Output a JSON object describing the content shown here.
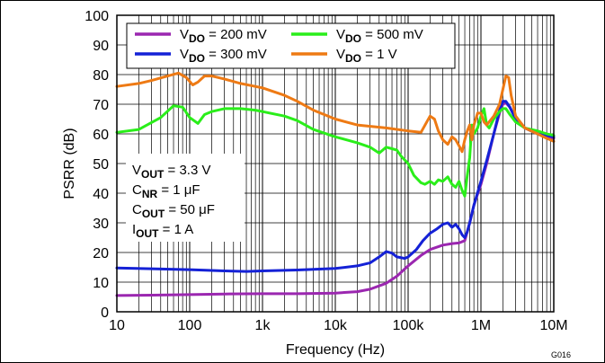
{
  "chart_data": {
    "type": "line",
    "ylabel": "PSRR (dB)",
    "xlabel": "Frequency (Hz)",
    "figure_id": "G016",
    "xscale": "log",
    "xlim": [
      10,
      10000000
    ],
    "ylim": [
      0,
      100
    ],
    "x_ticks": [
      10,
      100,
      1000,
      10000,
      100000,
      1000000,
      10000000
    ],
    "x_tick_labels": [
      "10",
      "100",
      "1k",
      "10k",
      "100k",
      "1M",
      "10M"
    ],
    "y_ticks": [
      0,
      10,
      20,
      30,
      40,
      50,
      60,
      70,
      80,
      90,
      100
    ],
    "y_tick_labels": [
      "0",
      "10",
      "20",
      "30",
      "40",
      "50",
      "60",
      "70",
      "80",
      "90",
      "100"
    ],
    "grid": true,
    "legend_position": "top",
    "series": [
      {
        "name_main": "V",
        "name_sub": "DO",
        "name_value": " = 200 mV",
        "color": "#9b27b0",
        "points": [
          [
            10,
            5.5
          ],
          [
            30,
            5.6
          ],
          [
            100,
            5.8
          ],
          [
            300,
            6
          ],
          [
            1000,
            6.1
          ],
          [
            3000,
            6.1
          ],
          [
            10000,
            6.3
          ],
          [
            20000,
            6.8
          ],
          [
            30000,
            7.6
          ],
          [
            50000,
            9.6
          ],
          [
            70000,
            12
          ],
          [
            100000,
            15.5
          ],
          [
            150000,
            19
          ],
          [
            200000,
            21
          ],
          [
            300000,
            22.5
          ],
          [
            400000,
            23
          ],
          [
            500000,
            23.2
          ],
          [
            600000,
            24
          ],
          [
            700000,
            30
          ],
          [
            800000,
            36
          ],
          [
            1000000,
            43
          ],
          [
            1200000,
            50
          ],
          [
            1500000,
            60
          ],
          [
            1800000,
            67
          ],
          [
            2000000,
            70
          ],
          [
            2200000,
            70.5
          ],
          [
            2500000,
            69
          ],
          [
            3000000,
            65
          ],
          [
            4000000,
            62
          ],
          [
            6000000,
            60
          ],
          [
            8000000,
            59
          ],
          [
            10000000,
            58.5
          ]
        ]
      },
      {
        "name_main": "V",
        "name_sub": "DO",
        "name_value": " = 300 mV",
        "color": "#1421d6",
        "points": [
          [
            10,
            14.8
          ],
          [
            30,
            14.5
          ],
          [
            100,
            14.2
          ],
          [
            300,
            13.8
          ],
          [
            600,
            13.6
          ],
          [
            1000,
            13.8
          ],
          [
            3000,
            14.1
          ],
          [
            10000,
            14.6
          ],
          [
            20000,
            15.5
          ],
          [
            30000,
            16.5
          ],
          [
            40000,
            18.5
          ],
          [
            50000,
            20.3
          ],
          [
            60000,
            19.8
          ],
          [
            70000,
            18.5
          ],
          [
            90000,
            18
          ],
          [
            100000,
            18.5
          ],
          [
            130000,
            21
          ],
          [
            160000,
            24
          ],
          [
            200000,
            26.5
          ],
          [
            250000,
            28
          ],
          [
            300000,
            29.5
          ],
          [
            350000,
            30
          ],
          [
            400000,
            28.5
          ],
          [
            450000,
            29.5
          ],
          [
            500000,
            28
          ],
          [
            550000,
            26
          ],
          [
            600000,
            25
          ],
          [
            650000,
            27
          ],
          [
            700000,
            30
          ],
          [
            800000,
            36
          ],
          [
            1000000,
            44
          ],
          [
            1200000,
            51
          ],
          [
            1500000,
            60
          ],
          [
            1800000,
            68
          ],
          [
            2000000,
            71
          ],
          [
            2200000,
            71
          ],
          [
            2500000,
            69
          ],
          [
            3000000,
            65
          ],
          [
            4000000,
            62
          ],
          [
            6000000,
            60
          ],
          [
            8000000,
            59.5
          ],
          [
            10000000,
            59
          ]
        ]
      },
      {
        "name_main": "V",
        "name_sub": "DO",
        "name_value": " = 500 mV",
        "color": "#2aee1a",
        "points": [
          [
            10,
            60.5
          ],
          [
            20,
            61.5
          ],
          [
            40,
            65.5
          ],
          [
            60,
            69.5
          ],
          [
            80,
            69
          ],
          [
            100,
            65.5
          ],
          [
            130,
            63.5
          ],
          [
            160,
            66.5
          ],
          [
            200,
            67.5
          ],
          [
            300,
            68.5
          ],
          [
            500,
            68.5
          ],
          [
            800,
            68
          ],
          [
            1000,
            67.5
          ],
          [
            2000,
            66
          ],
          [
            3000,
            64.5
          ],
          [
            5000,
            61.5
          ],
          [
            10000,
            59
          ],
          [
            20000,
            57
          ],
          [
            30000,
            55.5
          ],
          [
            40000,
            53.5
          ],
          [
            50000,
            55.5
          ],
          [
            60000,
            55
          ],
          [
            70000,
            54.5
          ],
          [
            80000,
            52.5
          ],
          [
            100000,
            50
          ],
          [
            120000,
            46
          ],
          [
            150000,
            43.5
          ],
          [
            170000,
            43
          ],
          [
            200000,
            44
          ],
          [
            230000,
            43
          ],
          [
            260000,
            44.5
          ],
          [
            300000,
            44
          ],
          [
            350000,
            45.5
          ],
          [
            400000,
            43
          ],
          [
            450000,
            42
          ],
          [
            500000,
            44
          ],
          [
            550000,
            41
          ],
          [
            600000,
            39
          ],
          [
            650000,
            46
          ],
          [
            700000,
            52
          ],
          [
            750000,
            63
          ],
          [
            800000,
            60
          ],
          [
            900000,
            62
          ],
          [
            1000000,
            66
          ],
          [
            1100000,
            68.5
          ],
          [
            1200000,
            63
          ],
          [
            1300000,
            62
          ],
          [
            1500000,
            65
          ],
          [
            1800000,
            67.5
          ],
          [
            2000000,
            68.5
          ],
          [
            2200000,
            68.5
          ],
          [
            2500000,
            66.5
          ],
          [
            3000000,
            64
          ],
          [
            4000000,
            62
          ],
          [
            6000000,
            61
          ],
          [
            8000000,
            60
          ],
          [
            10000000,
            59.5
          ]
        ]
      },
      {
        "name_main": "V",
        "name_sub": "DO",
        "name_value": " = 1 V",
        "color": "#ee7a14",
        "points": [
          [
            10,
            76
          ],
          [
            20,
            77
          ],
          [
            30,
            78
          ],
          [
            50,
            79.5
          ],
          [
            70,
            80.5
          ],
          [
            90,
            79
          ],
          [
            110,
            76.5
          ],
          [
            130,
            77.5
          ],
          [
            160,
            79.5
          ],
          [
            200,
            79.5
          ],
          [
            300,
            78.5
          ],
          [
            500,
            77
          ],
          [
            1000,
            75.5
          ],
          [
            2000,
            73
          ],
          [
            3000,
            71
          ],
          [
            5000,
            68
          ],
          [
            10000,
            65
          ],
          [
            20000,
            63
          ],
          [
            50000,
            62
          ],
          [
            100000,
            61
          ],
          [
            150000,
            60.5
          ],
          [
            180000,
            64
          ],
          [
            200000,
            66
          ],
          [
            230000,
            65
          ],
          [
            260000,
            61
          ],
          [
            300000,
            58
          ],
          [
            350000,
            56.5
          ],
          [
            400000,
            59
          ],
          [
            450000,
            58
          ],
          [
            500000,
            56
          ],
          [
            550000,
            54
          ],
          [
            600000,
            58
          ],
          [
            650000,
            61
          ],
          [
            700000,
            63
          ],
          [
            750000,
            58
          ],
          [
            800000,
            63
          ],
          [
            900000,
            67
          ],
          [
            1000000,
            67
          ],
          [
            1100000,
            64
          ],
          [
            1200000,
            63
          ],
          [
            1500000,
            66
          ],
          [
            1800000,
            70
          ],
          [
            2000000,
            75
          ],
          [
            2200000,
            79.5
          ],
          [
            2400000,
            79
          ],
          [
            2600000,
            73
          ],
          [
            3000000,
            66
          ],
          [
            4000000,
            62
          ],
          [
            6000000,
            60
          ],
          [
            8000000,
            58.5
          ],
          [
            10000000,
            57.5
          ]
        ]
      }
    ],
    "conditions": [
      {
        "main": "V",
        "sub": "OUT",
        "value": " = 3.3 V"
      },
      {
        "main": "C",
        "sub": "NR",
        "value": " = 1 μF"
      },
      {
        "main": "C",
        "sub": "OUT",
        "value": " = 50 μF"
      },
      {
        "main": "I",
        "sub": "OUT",
        "value": " = 1 A"
      }
    ]
  }
}
